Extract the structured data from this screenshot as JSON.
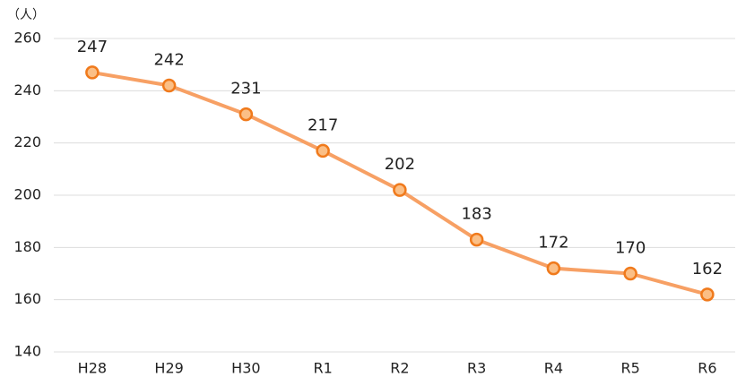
{
  "chart_data": {
    "type": "line",
    "ylabel": "（人）",
    "categories": [
      "H28",
      "H29",
      "H30",
      "R1",
      "R2",
      "R3",
      "R4",
      "R5",
      "R6"
    ],
    "values": [
      247,
      242,
      231,
      217,
      202,
      183,
      172,
      170,
      162
    ],
    "color": "#f7a064",
    "marker_color": "#fbbf86",
    "marker_edge": "#f07a1c",
    "ylim": [
      140,
      260
    ],
    "yticks": [
      140,
      160,
      180,
      200,
      220,
      240,
      260
    ],
    "grid": true
  }
}
